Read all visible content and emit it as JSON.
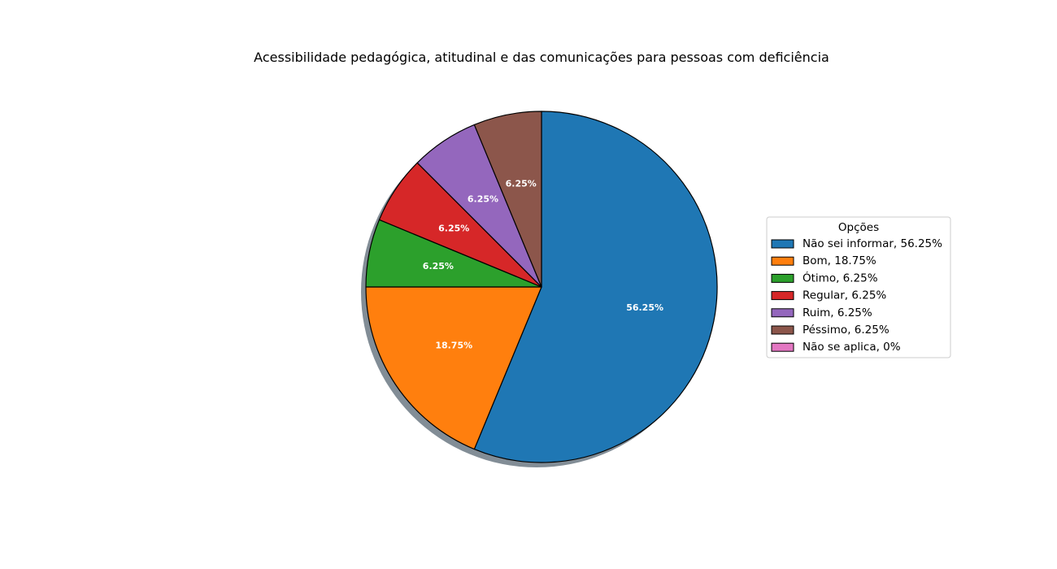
{
  "chart_data": {
    "type": "pie",
    "title": "Acessibilidade pedagógica, atitudinal e das comunicações para pessoas com deficiência",
    "legend_title": "Opções",
    "legend_placement": "center-right",
    "shadow": true,
    "start_angle_deg": 90,
    "direction": "clockwise",
    "slices": [
      {
        "legend_label": "Não sei informar, 56.25%",
        "value": 56.25,
        "pct_label": "56.25%",
        "color": "#1f77b4"
      },
      {
        "legend_label": "Bom, 18.75%",
        "value": 18.75,
        "pct_label": "18.75%",
        "color": "#ff7f0e"
      },
      {
        "legend_label": "Ótimo, 6.25%",
        "value": 6.25,
        "pct_label": "6.25%",
        "color": "#2ca02c"
      },
      {
        "legend_label": "Regular, 6.25%",
        "value": 6.25,
        "pct_label": "6.25%",
        "color": "#d62728"
      },
      {
        "legend_label": "Ruim, 6.25%",
        "value": 6.25,
        "pct_label": "6.25%",
        "color": "#9467bd"
      },
      {
        "legend_label": "Péssimo, 6.25%",
        "value": 6.25,
        "pct_label": "6.25%",
        "color": "#8c564b"
      },
      {
        "legend_label": "Não se aplica, 0%",
        "value": 0,
        "pct_label": "",
        "color": "#e377c2"
      }
    ]
  }
}
